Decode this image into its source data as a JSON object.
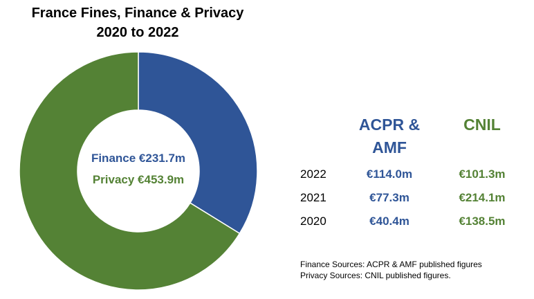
{
  "chart_data": {
    "type": "pie",
    "subtype": "donut",
    "title": [
      "France Fines, Finance & Privacy",
      "2020 to 2022"
    ],
    "slices": [
      {
        "name": "Finance",
        "value": 231.7,
        "label": "Finance €231.7m",
        "color": "#2F5597"
      },
      {
        "name": "Privacy",
        "value": 453.9,
        "label": "Privacy €453.9m",
        "color": "#548235"
      }
    ],
    "table": {
      "columns": [
        {
          "header_lines": [
            "ACPR &",
            "AMF"
          ],
          "color": "#2F5597"
        },
        {
          "header_lines": [
            "CNIL"
          ],
          "color": "#548235"
        }
      ],
      "rows": [
        {
          "year": "2022",
          "values": [
            "€114.0m",
            "€101.3m"
          ]
        },
        {
          "year": "2021",
          "values": [
            "€77.3m",
            "€214.1m"
          ]
        },
        {
          "year": "2020",
          "values": [
            "€40.4m",
            "€138.5m"
          ]
        }
      ]
    },
    "notes": [
      "Finance Sources: ACPR & AMF published figures",
      "Privacy Sources: CNIL published figures."
    ]
  }
}
